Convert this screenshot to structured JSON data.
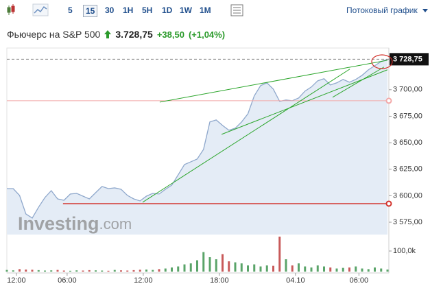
{
  "toolbar": {
    "timeframes": [
      "5",
      "15",
      "30",
      "1H",
      "5H",
      "1D",
      "1W",
      "1M"
    ],
    "selected": 1,
    "stream_label": "Потоковый график"
  },
  "header": {
    "title": "Фьючерс на S&P 500",
    "price": "3.728,75",
    "change": "+38,50",
    "change_pct": "(+1,04%)"
  },
  "chart_data": {
    "type": "area",
    "color": "#8fa8cc",
    "fill_color": "#e4ecf6",
    "x": [
      0,
      2,
      4,
      6,
      8,
      10,
      12,
      14,
      16,
      18,
      20,
      22,
      24,
      26,
      28,
      30,
      32,
      34,
      36,
      38,
      40,
      42,
      44,
      46,
      48,
      50,
      52,
      54,
      56,
      58,
      60,
      62,
      64,
      66,
      68,
      70,
      72,
      74,
      76,
      78,
      80,
      82,
      84,
      86,
      88,
      90,
      92,
      94,
      96,
      98,
      100,
      102,
      104,
      106,
      108,
      110,
      112,
      114,
      116,
      118,
      120
    ],
    "values": [
      3606.7,
      3606.7,
      3600.3,
      3582.8,
      3578.9,
      3589.2,
      3598.3,
      3604.8,
      3597.0,
      3595.7,
      3601.6,
      3602.2,
      3599.6,
      3597.0,
      3602.9,
      3608.7,
      3606.7,
      3607.4,
      3606.1,
      3600.3,
      3597.0,
      3595.1,
      3599.6,
      3602.2,
      3601.6,
      3606.1,
      3610.0,
      3619.7,
      3629.4,
      3632.0,
      3634.6,
      3643.7,
      3669.6,
      3671.5,
      3666.3,
      3661.8,
      3663.7,
      3669.6,
      3677.3,
      3694.2,
      3703.9,
      3706.5,
      3700.6,
      3689.0,
      3690.3,
      3689.6,
      3692.2,
      3698.7,
      3702.6,
      3708.4,
      3710.4,
      3704.5,
      3706.5,
      3709.7,
      3707.1,
      3709.7,
      3713.6,
      3718.8,
      3722.7,
      3726.6,
      3728.75
    ],
    "xlim": [
      0,
      120
    ],
    "xticks": [
      {
        "value": 3,
        "label": "12:00"
      },
      {
        "value": 19,
        "label": "06:00"
      },
      {
        "value": 43,
        "label": "12:00"
      },
      {
        "value": 67,
        "label": "18:00"
      },
      {
        "value": 91,
        "label": "04.10"
      },
      {
        "value": 111,
        "label": "06:00"
      }
    ],
    "ylim": [
      3564,
      3740
    ],
    "yticks": [
      {
        "value": 3575,
        "label": "3 575,00"
      },
      {
        "value": 3600,
        "label": "3 600,00"
      },
      {
        "value": 3625,
        "label": "3 625,00"
      },
      {
        "value": 3650,
        "label": "3 650,00"
      },
      {
        "value": 3675,
        "label": "3 675,00"
      },
      {
        "value": 3700,
        "label": "3 700,00"
      }
    ],
    "last_price": {
      "value": 3728.75,
      "label": "3 728,75"
    },
    "volume": {
      "values": [
        8000,
        6000,
        12000,
        10000,
        9000,
        7000,
        5000,
        6000,
        8000,
        5000,
        4000,
        6000,
        5000,
        7000,
        6000,
        5000,
        4000,
        8000,
        6000,
        5000,
        7000,
        9000,
        10000,
        8000,
        12000,
        15000,
        20000,
        25000,
        35000,
        40000,
        55000,
        95000,
        70000,
        60000,
        85000,
        50000,
        45000,
        40000,
        30000,
        35000,
        25000,
        30000,
        28000,
        170000,
        60000,
        30000,
        40000,
        25000,
        20000,
        30000,
        25000,
        20000,
        15000,
        18000,
        20000,
        25000,
        15000,
        12000,
        20000,
        15000,
        10000
      ],
      "ylim": [
        0,
        180000
      ],
      "yticks": [
        {
          "value": 100000,
          "label": "100,0k"
        }
      ],
      "up_color": "#5aa469",
      "down_color": "#c85a5a"
    },
    "hlines": [
      {
        "value": 3689.6,
        "from": 0,
        "color": "#f2a8a8"
      },
      {
        "value": 3592.5,
        "from": 17.7,
        "color": "#d2302a"
      }
    ],
    "trendlines": [
      {
        "x": [
          48.2,
          120
        ],
        "y": [
          3688.3,
          3727.8
        ]
      },
      {
        "x": [
          42.8,
          108.1
        ],
        "y": [
          3593.8,
          3719.4
        ]
      },
      {
        "x": [
          67.7,
          120
        ],
        "y": [
          3657.9,
          3718.8
        ]
      },
      {
        "x": [
          102.7,
          118.9
        ],
        "y": [
          3692.9,
          3721.4
        ]
      }
    ],
    "trend_color": "#2aa52a",
    "watermark": {
      "brand": "Investing",
      "suffix": ".com"
    }
  }
}
